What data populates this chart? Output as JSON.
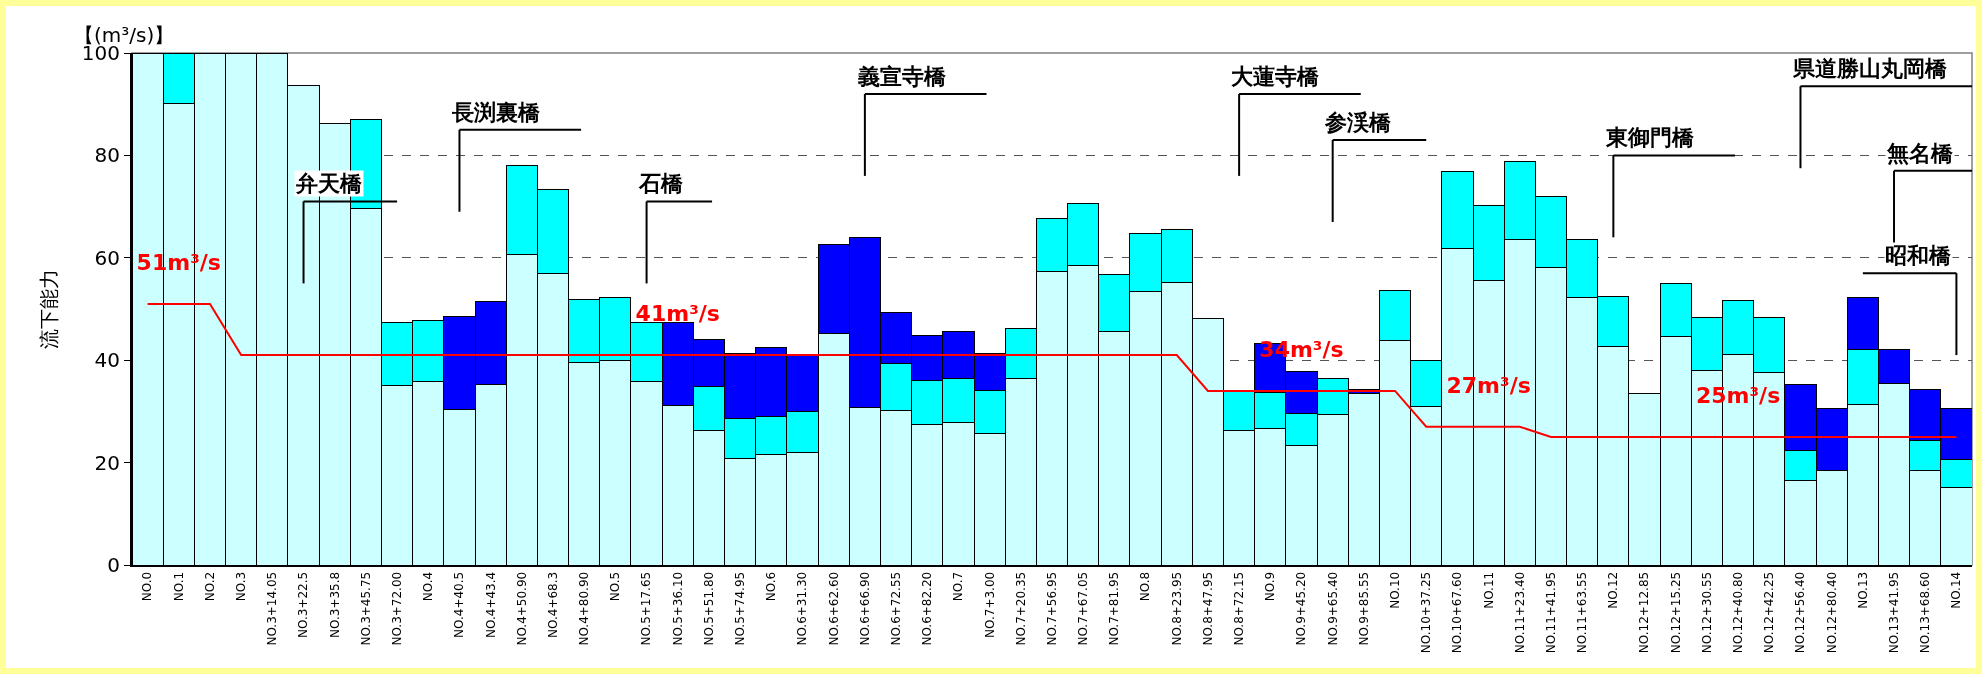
{
  "chart_data": {
    "type": "bar",
    "stacked": true,
    "ylabel": "流下能力",
    "ylim": [
      0,
      100
    ],
    "yticks": [
      0,
      20,
      40,
      60,
      80,
      100
    ],
    "grid": "y",
    "categories": [
      "NO.0",
      "NO.1",
      "NO.2",
      "NO.3",
      "NO.3+14.05",
      "NO.3+22.5",
      "NO.3+35.8",
      "NO.3+45.75",
      "NO.3+72.00",
      "NO.4",
      "NO.4+40.5",
      "NO.4+43.4",
      "NO.4+50.90",
      "NO.4+68.3",
      "NO.4+80.90",
      "NO.5",
      "NO.5+17.65",
      "NO.5+36.10",
      "NO.5+51.80",
      "NO.5+74.95",
      "NO.6",
      "NO.6+31.30",
      "NO.6+62.60",
      "NO.6+66.90",
      "NO.6+72.55",
      "NO.6+82.20",
      "NO.7",
      "NO.7+3.00",
      "NO.7+20.35",
      "NO.7+56.95",
      "NO.7+67.05",
      "NO.7+81.95",
      "NO.8",
      "NO.8+23.95",
      "NO.8+47.95",
      "NO.8+72.15",
      "NO.9",
      "NO.9+45.20",
      "NO.9+65.40",
      "NO.9+85.55",
      "NO.10",
      "NO.10+37.25",
      "NO.10+67.60",
      "NO.11",
      "NO.11+23.40",
      "NO.11+41.95",
      "NO.11+63.55",
      "NO.12",
      "NO.12+12.85",
      "NO.12+15.25",
      "NO.12+30.55",
      "NO.12+40.80",
      "NO.12+42.25",
      "NO.12+56.40",
      "NO.12+80.40",
      "NO.13",
      "NO.13+41.95",
      "NO.13+68.60",
      "NO.14"
    ],
    "series": [
      {
        "color": "#ccffff",
        "values": [
          100,
          90.1,
          100,
          100,
          100,
          93.7,
          86.2,
          69.7,
          35.0,
          35.8,
          30.3,
          35.3,
          60.7,
          56.9,
          39.5,
          39.9,
          35.8,
          31.2,
          26.2,
          20.8,
          21.6,
          22.0,
          45.2,
          30.7,
          30.2,
          27.4,
          27.9,
          25.7,
          36.5,
          57.3,
          58.5,
          45.7,
          53.5,
          55.1,
          48.2,
          26.2,
          26.6,
          23.3,
          29.3,
          33.4,
          43.8,
          30.9,
          61.9,
          55.6,
          63.6,
          58.2,
          52.3,
          42.6,
          33.4,
          44.6,
          37.9,
          41.2,
          37.6,
          16.5,
          18.5,
          31.4,
          35.5,
          18.5,
          15.2
        ]
      },
      {
        "color": "#00ffff",
        "values": [
          null,
          9.9,
          null,
          null,
          null,
          null,
          null,
          17.4,
          12.3,
          11.9,
          null,
          null,
          17.4,
          16.5,
          12.3,
          12.4,
          11.5,
          null,
          8.7,
          7.8,
          7.5,
          7.9,
          null,
          null,
          9.2,
          8.7,
          8.6,
          8.3,
          9.6,
          10.3,
          12.1,
          11.1,
          11.2,
          10.4,
          null,
          7.8,
          7.0,
          6.2,
          7.2,
          null,
          9.9,
          9.1,
          14.9,
          14.6,
          15.3,
          13.7,
          11.3,
          9.8,
          null,
          10.3,
          10.4,
          10.4,
          10.7,
          5.8,
          null,
          10.7,
          null,
          5.8,
          5.4
        ]
      },
      {
        "color": "#0000ff",
        "values": [
          null,
          null,
          null,
          null,
          null,
          null,
          null,
          null,
          null,
          null,
          18.2,
          16.2,
          null,
          null,
          null,
          null,
          null,
          16.1,
          9.1,
          12.8,
          13.3,
          11.3,
          17.4,
          33.2,
          10.0,
          8.7,
          9.2,
          7.4,
          null,
          null,
          null,
          null,
          null,
          null,
          null,
          null,
          9.6,
          8.2,
          null,
          0.8,
          null,
          null,
          null,
          null,
          null,
          null,
          null,
          null,
          null,
          null,
          null,
          null,
          null,
          12.9,
          12.0,
          10.2,
          6.6,
          9.9,
          9.9
        ]
      },
      {
        "type": "line",
        "color": "#ff0000",
        "values": [
          51,
          51,
          51,
          41,
          41,
          41,
          41,
          41,
          41,
          41,
          41,
          41,
          41,
          41,
          41,
          41,
          41,
          41,
          41,
          41,
          41,
          41,
          41,
          41,
          41,
          41,
          41,
          41,
          41,
          41,
          41,
          41,
          41,
          41,
          34,
          34,
          34,
          34,
          34,
          34,
          34,
          27,
          27,
          27,
          27,
          25,
          25,
          25,
          25,
          25,
          25,
          25,
          25,
          25,
          25,
          25,
          25,
          25,
          25
        ],
        "value_labels": [
          null,
          "51m³/s",
          null,
          null,
          null,
          null,
          null,
          null,
          null,
          null,
          null,
          null,
          null,
          null,
          null,
          null,
          null,
          "41m³/s",
          null,
          null,
          null,
          null,
          null,
          null,
          null,
          null,
          null,
          null,
          null,
          null,
          null,
          null,
          null,
          null,
          null,
          null,
          null,
          "34m³/s",
          null,
          null,
          null,
          null,
          null,
          "27m³/s",
          null,
          null,
          null,
          null,
          null,
          null,
          null,
          "25m³/s",
          null,
          null,
          null,
          null,
          null,
          null,
          null
        ]
      }
    ],
    "annotations": [
      "【(m³/s)】",
      "弁天橋",
      "長渕裏橋",
      "石橋",
      "義宣寺橋",
      "大蓮寺橋",
      "参渓橋",
      "東御門橋",
      "県道勝山丸岡橋",
      "無名橋",
      "昭和橋"
    ]
  }
}
